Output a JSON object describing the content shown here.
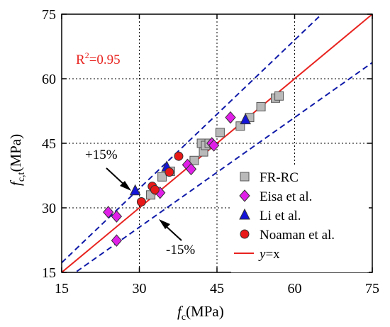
{
  "chart_data": {
    "type": "scatter",
    "title": "",
    "xlabel_main": "f",
    "xlabel_sub": "c",
    "xlabel_unit": "(MPa)",
    "ylabel_main": "f",
    "ylabel_sub": "c,t",
    "ylabel_unit": "(MPa)",
    "xlim": [
      15,
      75
    ],
    "ylim": [
      15,
      75
    ],
    "xticks": [
      15,
      30,
      45,
      60,
      75
    ],
    "yticks": [
      15,
      30,
      45,
      60,
      75
    ],
    "grid": "dotted",
    "legend_position": "bottom-right",
    "annotation_r2_main": "R",
    "annotation_r2_sup": "2",
    "annotation_r2_rest": "=0.95",
    "annotation_r2_color": "#e8231f",
    "annotation_plus": "+15%",
    "annotation_minus": "-15%",
    "series": [
      {
        "name": "FR-RC",
        "marker": "square",
        "color": "#b9b9b9",
        "points": [
          [
            32.2,
            33.0
          ],
          [
            34.4,
            37.2
          ],
          [
            36.0,
            38.5
          ],
          [
            40.6,
            41.0
          ],
          [
            42.0,
            45.0
          ],
          [
            42.4,
            43.0
          ],
          [
            42.8,
            44.5
          ],
          [
            43.5,
            45.0
          ],
          [
            45.6,
            47.5
          ],
          [
            49.5,
            49.0
          ],
          [
            51.3,
            51.0
          ],
          [
            53.5,
            53.5
          ],
          [
            56.3,
            55.5
          ],
          [
            57.0,
            56.0
          ]
        ]
      },
      {
        "name": "Eisa et al.",
        "marker": "diamond",
        "color": "#e020e8",
        "points": [
          [
            24.0,
            29.0
          ],
          [
            25.6,
            28.0
          ],
          [
            25.6,
            22.4
          ],
          [
            32.8,
            34.5
          ],
          [
            34.0,
            33.5
          ],
          [
            39.3,
            40.0
          ],
          [
            40.0,
            39.0
          ],
          [
            44.0,
            45.0
          ],
          [
            44.4,
            44.5
          ],
          [
            47.6,
            51.0
          ]
        ]
      },
      {
        "name": "Li et al.",
        "marker": "triangle",
        "color": "#1414d8",
        "points": [
          [
            29.2,
            34.0
          ],
          [
            35.3,
            39.5
          ],
          [
            50.5,
            50.5
          ]
        ]
      },
      {
        "name": "Noaman et al.",
        "marker": "circle",
        "color": "#e81818",
        "points": [
          [
            30.4,
            31.4
          ],
          [
            32.5,
            35.0
          ],
          [
            33.0,
            34.2
          ],
          [
            35.8,
            38.3
          ],
          [
            37.6,
            42.0
          ]
        ]
      }
    ],
    "lines": [
      {
        "name": "y=x",
        "style": "solid",
        "color": "#e8231f",
        "slope": 1.0
      },
      {
        "name": "+15%",
        "style": "dashed",
        "color": "#0f1aa8",
        "slope": 1.15
      },
      {
        "name": "-15%",
        "style": "dashed",
        "color": "#0f1aa8",
        "slope": 0.85
      }
    ],
    "legend_line_label_italic": "y",
    "legend_line_label_rest": "=x"
  }
}
